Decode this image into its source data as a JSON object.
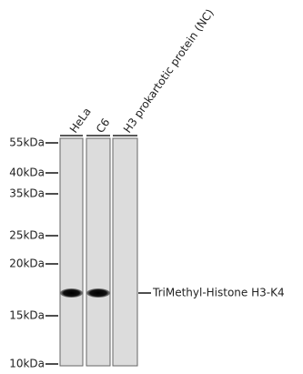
{
  "lanes": [
    "HeLa",
    "C6",
    "H3 prokartotic protein (NC)"
  ],
  "markers": [
    "55kDa",
    "40kDa",
    "35kDa",
    "25kDa",
    "20kDa",
    "15kDa",
    "10kDa"
  ],
  "band_label": "TriMethyl-Histone H3-K4"
}
